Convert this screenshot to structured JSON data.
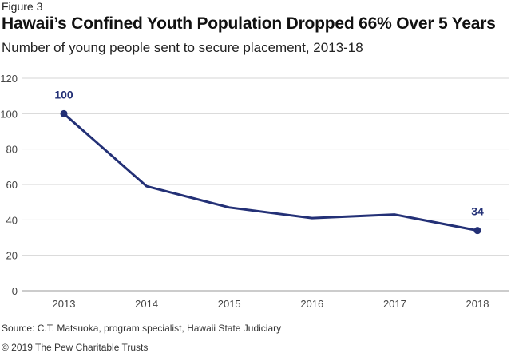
{
  "figure_label": "Figure 3",
  "source": "Source: C.T. Matsuoka, program specialist, Hawaii State Judiciary",
  "copyright": "© 2019 The Pew Charitable Trusts",
  "chart_data": {
    "type": "line",
    "title": "Hawaii’s Confined Youth Population Dropped 66% Over 5 Years",
    "subtitle": "Number of young people sent to secure placement, 2013-18",
    "categories": [
      "2013",
      "2014",
      "2015",
      "2016",
      "2017",
      "2018"
    ],
    "series": [
      {
        "values": [
          100,
          59,
          47,
          41,
          43,
          34
        ],
        "color": "#233076"
      }
    ],
    "data_labels": [
      {
        "index": 0,
        "text": "100"
      },
      {
        "index": 5,
        "text": "34"
      }
    ],
    "yticks": [
      "0",
      "20",
      "40",
      "60",
      "80",
      "100",
      "120"
    ],
    "ylim": [
      0,
      120
    ],
    "grid": true,
    "xlabel": "",
    "ylabel": ""
  }
}
